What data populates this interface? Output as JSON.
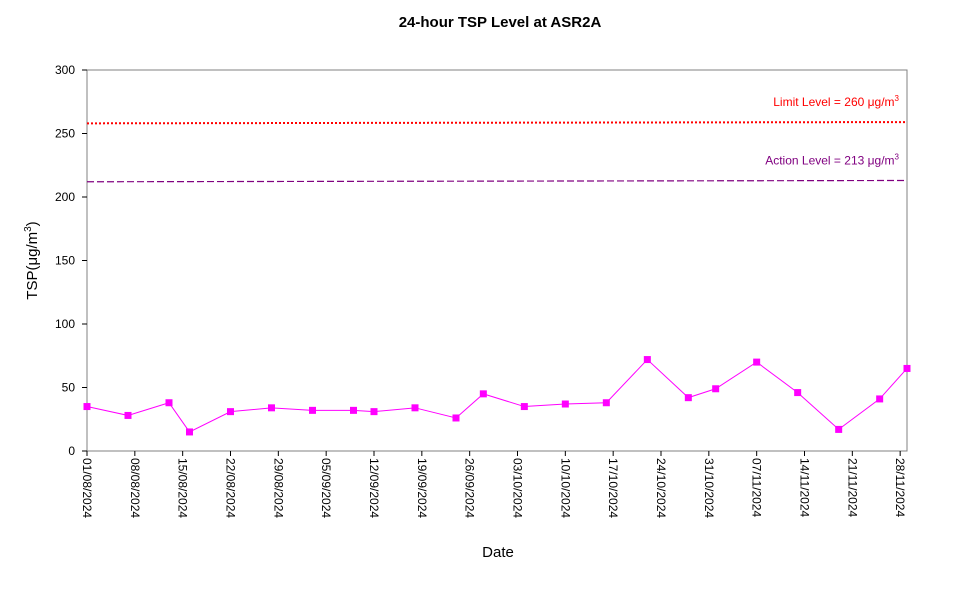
{
  "chart_data": {
    "type": "line",
    "title": "24-hour TSP Level at ASR2A",
    "xlabel": "Date",
    "ylabel": "TSP(μg/m3)",
    "ylim": [
      0,
      300
    ],
    "yticks": [
      0,
      50,
      100,
      150,
      200,
      250,
      300
    ],
    "xlim": [
      "2024-08-01",
      "2024-11-29"
    ],
    "xtick_labels": [
      "01/08/2024",
      "08/08/2024",
      "15/08/2024",
      "22/08/2024",
      "29/08/2024",
      "05/09/2024",
      "12/09/2024",
      "19/09/2024",
      "26/09/2024",
      "03/10/2024",
      "10/10/2024",
      "17/10/2024",
      "24/10/2024",
      "31/10/2024",
      "07/11/2024",
      "14/11/2024",
      "21/11/2024",
      "28/11/2024"
    ],
    "grid": false,
    "series": [
      {
        "color": "#ff00ff",
        "x": [
          "2024-08-01",
          "2024-08-07",
          "2024-08-13",
          "2024-08-16",
          "2024-08-22",
          "2024-08-28",
          "2024-09-03",
          "2024-09-09",
          "2024-09-12",
          "2024-09-18",
          "2024-09-24",
          "2024-09-28",
          "2024-10-04",
          "2024-10-10",
          "2024-10-16",
          "2024-10-22",
          "2024-10-28",
          "2024-11-01",
          "2024-11-07",
          "2024-11-13",
          "2024-11-19",
          "2024-11-25",
          "2024-11-29"
        ],
        "y": [
          35,
          28,
          38,
          15,
          31,
          34,
          32,
          32,
          31,
          34,
          26,
          45,
          35,
          37,
          38,
          72,
          42,
          49,
          70,
          46,
          17,
          41,
          65
        ]
      }
    ],
    "reference_lines": [
      {
        "label": "Limit Level",
        "text": "Limit Level = 260 μg/m3",
        "y_start": 258,
        "y_end": 259,
        "color": "#ff0000",
        "style": "dotted"
      },
      {
        "label": "Action Level",
        "text": "Action Level = 213 μg/m3",
        "y_start": 212,
        "y_end": 213,
        "color": "#800080",
        "style": "dashed"
      }
    ]
  }
}
